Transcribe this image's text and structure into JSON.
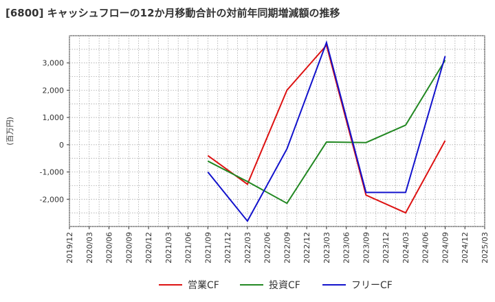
{
  "chart_data": {
    "type": "line",
    "title": "[6800]  キャッシュフローの12か月移動合計の対前年同期増減額の推移",
    "ylabel": "(百万円)",
    "xlabel": "",
    "ylim": [
      -3000,
      4000
    ],
    "yticks": [
      -2000,
      -1000,
      0,
      1000,
      2000,
      3000
    ],
    "ytick_labels": [
      "-2,000",
      "-1,000",
      "0",
      "1,000",
      "2,000",
      "3,000"
    ],
    "x_ticks": [
      "2019/12",
      "2020/03",
      "2020/06",
      "2020/09",
      "2020/12",
      "2021/03",
      "2021/06",
      "2021/09",
      "2021/12",
      "2022/03",
      "2022/06",
      "2022/09",
      "2022/12",
      "2023/03",
      "2023/06",
      "2023/09",
      "2023/12",
      "2024/03",
      "2024/06",
      "2024/09",
      "2024/12",
      "2025/03"
    ],
    "grid": true,
    "legend_position": "bottom",
    "series": [
      {
        "name": "営業CF",
        "color": "#dd1111",
        "points": [
          {
            "x": "2021/09",
            "y": -400
          },
          {
            "x": "2022/03",
            "y": -1450
          },
          {
            "x": "2022/09",
            "y": 2000
          },
          {
            "x": "2023/03",
            "y": 3650
          },
          {
            "x": "2023/09",
            "y": -1850
          },
          {
            "x": "2024/03",
            "y": -2500
          },
          {
            "x": "2024/09",
            "y": 150
          }
        ]
      },
      {
        "name": "投資CF",
        "color": "#228822",
        "points": [
          {
            "x": "2021/09",
            "y": -600
          },
          {
            "x": "2022/03",
            "y": -1350
          },
          {
            "x": "2022/09",
            "y": -2150
          },
          {
            "x": "2023/03",
            "y": 100
          },
          {
            "x": "2023/09",
            "y": 80
          },
          {
            "x": "2024/03",
            "y": 720
          },
          {
            "x": "2024/09",
            "y": 3100
          }
        ]
      },
      {
        "name": "フリーCF",
        "color": "#1111cc",
        "points": [
          {
            "x": "2021/09",
            "y": -1000
          },
          {
            "x": "2022/03",
            "y": -2800
          },
          {
            "x": "2022/09",
            "y": -150
          },
          {
            "x": "2023/03",
            "y": 3750
          },
          {
            "x": "2023/09",
            "y": -1750
          },
          {
            "x": "2024/03",
            "y": -1750
          },
          {
            "x": "2024/09",
            "y": 3250
          }
        ]
      }
    ]
  }
}
